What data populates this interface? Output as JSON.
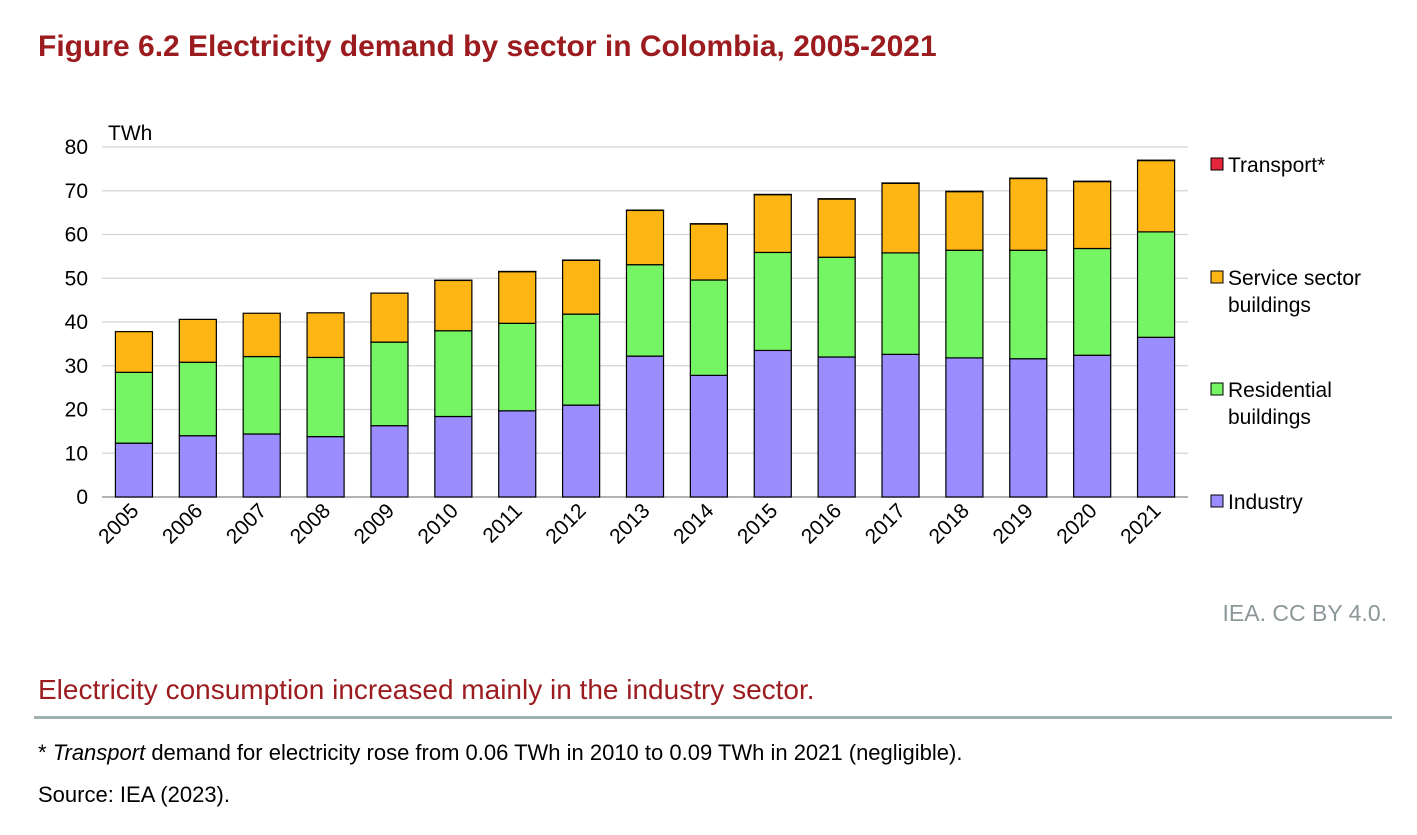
{
  "title": "Figure 6.2 Electricity demand by sector in Colombia, 2005-2021",
  "credit": "IEA. CC BY 4.0.",
  "caption": "Electricity consumption increased mainly in the industry sector.",
  "footnote": {
    "prefix": "* ",
    "italic": "Transport",
    "rest": " demand for electricity rose from 0.06 TWh in 2010 to 0.09 TWh in 2021 (negligible)."
  },
  "source": "Source: IEA (2023).",
  "chart_data": {
    "type": "bar",
    "stacked": true,
    "unit_label": "TWh",
    "ylim": [
      0,
      80
    ],
    "yticks": [
      0,
      10,
      20,
      30,
      40,
      50,
      60,
      70,
      80
    ],
    "grid": true,
    "legend_position": "right",
    "categories": [
      "2005",
      "2006",
      "2007",
      "2008",
      "2009",
      "2010",
      "2011",
      "2012",
      "2013",
      "2014",
      "2015",
      "2016",
      "2017",
      "2018",
      "2019",
      "2020",
      "2021"
    ],
    "series": [
      {
        "name": "Industry",
        "color": "#9b8cff",
        "values": [
          12.3,
          14.0,
          14.4,
          13.8,
          16.3,
          18.4,
          19.7,
          21.0,
          32.2,
          27.8,
          33.5,
          32.0,
          32.6,
          31.8,
          31.6,
          32.4,
          36.5
        ]
      },
      {
        "name": "Residential buildings",
        "color": "#75f564",
        "values": [
          16.2,
          16.8,
          17.7,
          18.1,
          19.1,
          19.6,
          20.0,
          20.8,
          20.9,
          21.8,
          22.4,
          22.8,
          23.2,
          24.6,
          24.8,
          24.4,
          24.1
        ]
      },
      {
        "name": "Service sector buildings",
        "color": "#fdb614",
        "values": [
          9.3,
          9.8,
          9.9,
          10.2,
          11.2,
          11.5,
          11.8,
          12.3,
          12.4,
          12.8,
          13.2,
          13.3,
          15.9,
          13.4,
          16.4,
          15.3,
          16.3
        ]
      },
      {
        "name": "Transport*",
        "color": "#e7263c",
        "values": [
          0,
          0,
          0,
          0,
          0,
          0.06,
          0.06,
          0.06,
          0.07,
          0.07,
          0.07,
          0.08,
          0.08,
          0.08,
          0.08,
          0.08,
          0.09
        ]
      }
    ]
  }
}
